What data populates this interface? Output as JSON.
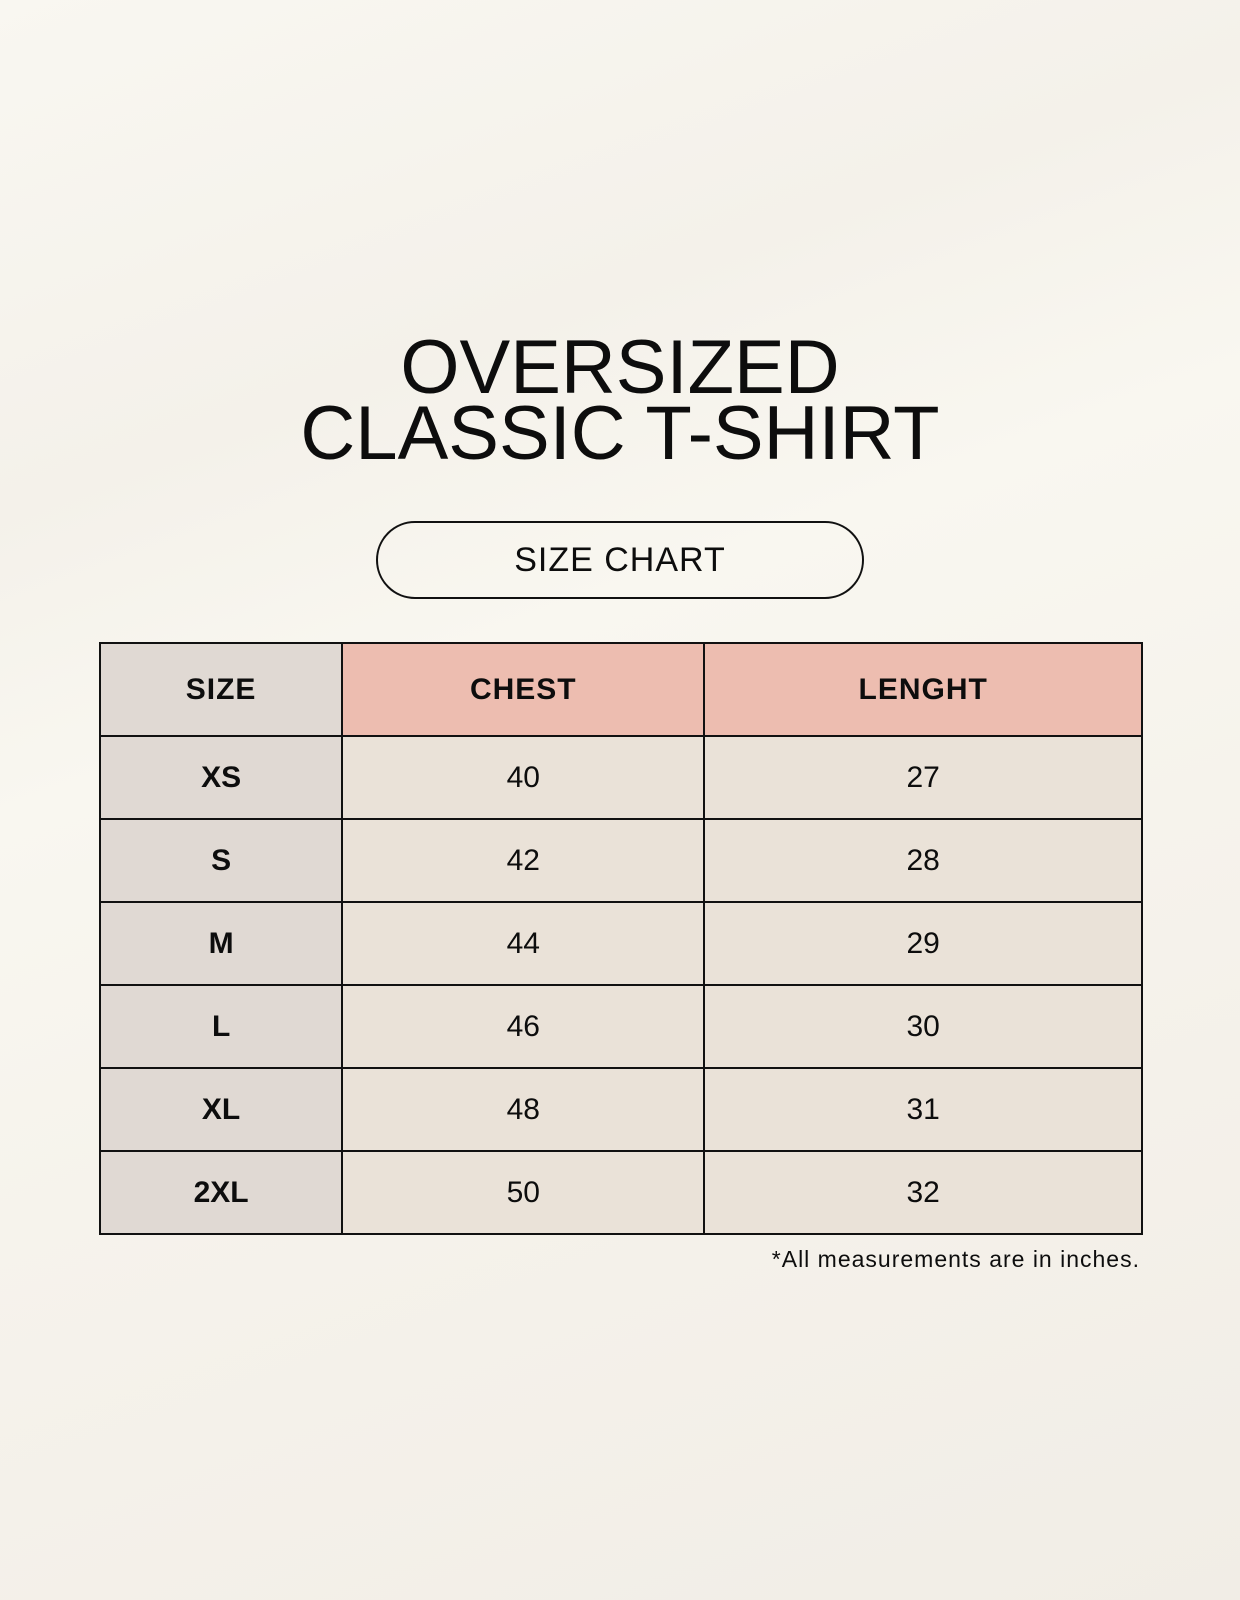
{
  "title": {
    "line1": "OVERSIZED",
    "line2": "CLASSIC T-SHIRT"
  },
  "badge": "SIZE CHART",
  "table": {
    "headers": [
      "SIZE",
      "CHEST",
      "LENGHT"
    ],
    "rows": [
      [
        "XS",
        "40",
        "27"
      ],
      [
        "S",
        "42",
        "28"
      ],
      [
        "M",
        "44",
        "29"
      ],
      [
        "L",
        "46",
        "30"
      ],
      [
        "XL",
        "48",
        "31"
      ],
      [
        "2XL",
        "50",
        "32"
      ]
    ]
  },
  "footnote": "*All measurements are in inches.",
  "colors": {
    "header_accent": "#edbdb0",
    "size_column": "#e0d9d3",
    "value_cells": "#eae2d8"
  }
}
